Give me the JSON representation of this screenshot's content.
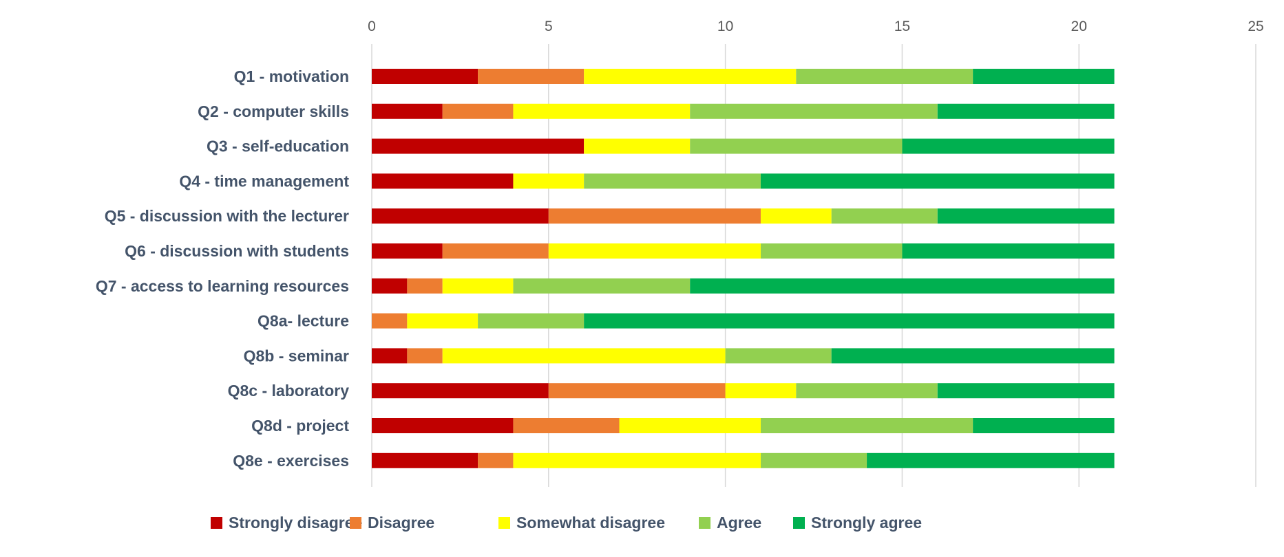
{
  "chart_data": {
    "type": "bar",
    "orientation": "horizontal",
    "stacked": true,
    "categories": [
      "Q1 - motivation",
      "Q2 - computer skills",
      "Q3 - self-education",
      "Q4 - time management",
      "Q5 - discussion with the lecturer",
      "Q6 - discussion  with students",
      "Q7 - access to learning resources",
      "Q8a- lecture",
      "Q8b - seminar",
      "Q8c - laboratory",
      "Q8d - project",
      "Q8e - exercises"
    ],
    "series": [
      {
        "name": "Strongly disagree",
        "color": "#c00000",
        "values": [
          3,
          2,
          6,
          4,
          5,
          2,
          1,
          0,
          1,
          5,
          4,
          3
        ]
      },
      {
        "name": "Disagree",
        "color": "#ed7d31",
        "values": [
          3,
          2,
          0,
          0,
          6,
          3,
          1,
          1,
          1,
          5,
          3,
          1
        ]
      },
      {
        "name": "Somewhat disagree",
        "color": "#ffff00",
        "values": [
          6,
          5,
          3,
          2,
          2,
          6,
          2,
          2,
          8,
          2,
          4,
          7
        ]
      },
      {
        "name": "Agree",
        "color": "#92d050",
        "values": [
          5,
          7,
          6,
          5,
          3,
          4,
          5,
          3,
          3,
          4,
          6,
          3
        ]
      },
      {
        "name": "Strongly agree",
        "color": "#00b050",
        "values": [
          4,
          5,
          6,
          10,
          5,
          6,
          12,
          15,
          8,
          5,
          4,
          7
        ]
      }
    ],
    "xlim": [
      0,
      25
    ],
    "xticks": [
      0,
      5,
      10,
      15,
      20,
      25
    ],
    "x_axis_position": "top",
    "grid": true,
    "legend_position": "bottom"
  }
}
